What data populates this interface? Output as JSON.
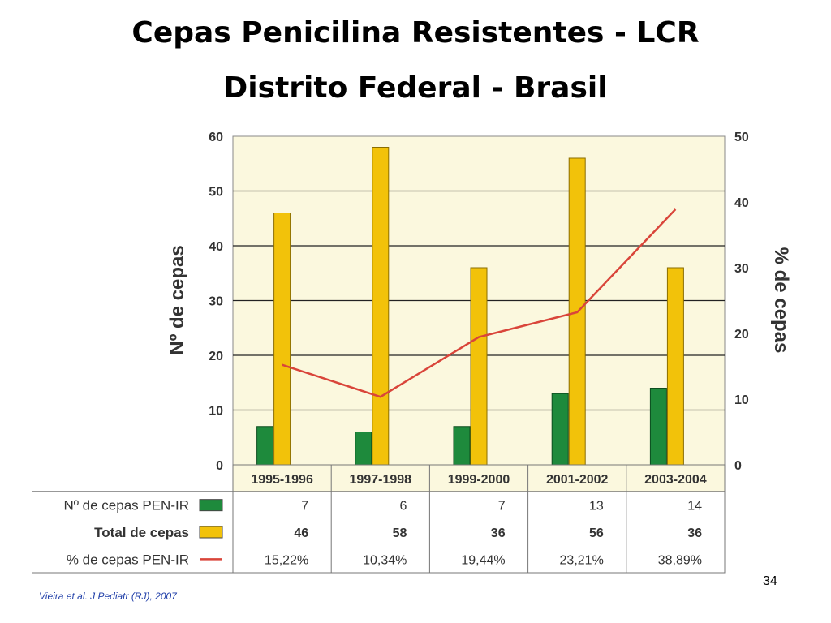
{
  "slide": {
    "title_line1": "Cepas Penicilina Resistentes - LCR",
    "title_line2": "Distrito Federal - Brasil",
    "footnote": "Vieira et al. J Pediatr (RJ), 2007",
    "page_number": "34"
  },
  "colors": {
    "plot_bg": "#fbf8de",
    "grid": "#222222",
    "pen_ir": "#1e8a3c",
    "total": "#f2c20a",
    "line": "#d9453a",
    "table_border": "#777777",
    "axis_text": "#333333"
  },
  "chart_data": {
    "type": "bar",
    "categories": [
      "1995-1996",
      "1997-1998",
      "1999-2000",
      "2001-2002",
      "2003-2004"
    ],
    "ylabel": "Nº de cepas",
    "y2label": "% de cepas",
    "ylim": [
      0,
      60
    ],
    "y2lim": [
      0,
      50
    ],
    "yticks": [
      "0",
      "10",
      "20",
      "30",
      "40",
      "50",
      "60"
    ],
    "y2ticks": [
      "0",
      "10",
      "20",
      "30",
      "40",
      "50"
    ],
    "grid": true,
    "series": [
      {
        "name": "Nº de cepas PEN-IR",
        "kind": "bar",
        "values": [
          7,
          6,
          7,
          13,
          14
        ],
        "labels": [
          "7",
          "6",
          "7",
          "13",
          "14"
        ]
      },
      {
        "name": "Total de cepas",
        "kind": "bar",
        "values": [
          46,
          58,
          36,
          56,
          36
        ],
        "labels": [
          "46",
          "58",
          "36",
          "56",
          "36"
        ]
      },
      {
        "name": "% de cepas PEN-IR",
        "kind": "line",
        "axis": "right",
        "values": [
          15.22,
          10.34,
          19.44,
          23.21,
          38.89
        ],
        "labels": [
          "15,22%",
          "10,34%",
          "19,44%",
          "23,21%",
          "38,89%"
        ]
      }
    ]
  }
}
